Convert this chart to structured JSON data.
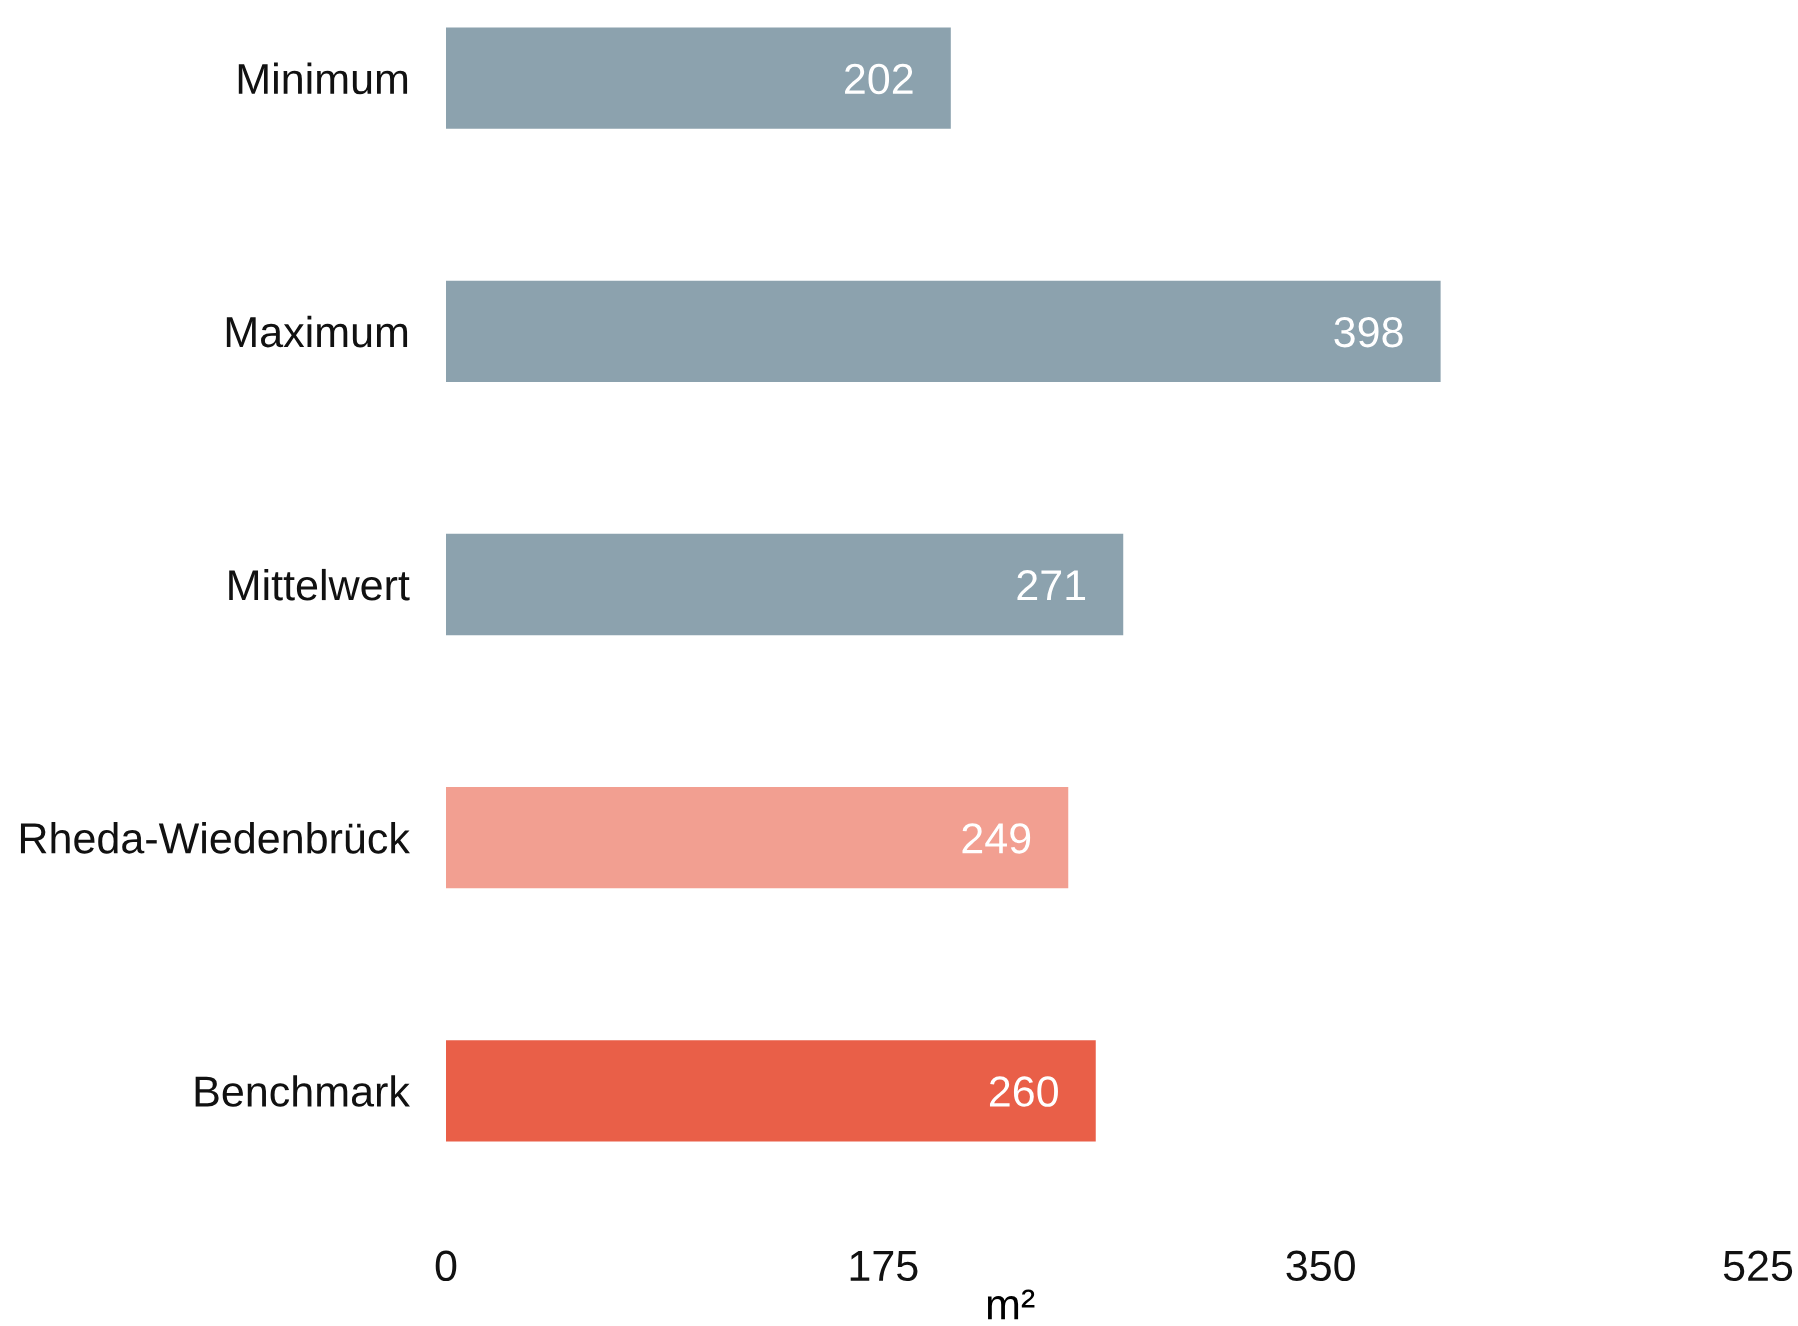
{
  "chart_data": {
    "type": "bar",
    "orientation": "horizontal",
    "categories": [
      "Minimum",
      "Maximum",
      "Mittelwert",
      "Rheda-Wiedenbrück",
      "Benchmark"
    ],
    "values": [
      202,
      398,
      271,
      249,
      260
    ],
    "colors": [
      "#8ca2ae",
      "#8ca2ae",
      "#8ca2ae",
      "#f29f91",
      "#e95f48"
    ],
    "xlabel": "m²",
    "xlim": [
      0,
      525
    ],
    "xticks": [
      0,
      175,
      350,
      525
    ],
    "data_labels": true,
    "grid": false,
    "legend": false
  }
}
